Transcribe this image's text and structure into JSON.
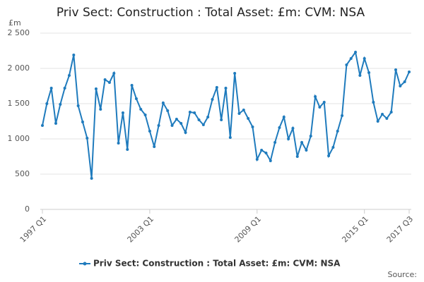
{
  "chart_data": {
    "type": "line",
    "title": "Priv Sect: Construction : Total Asset: £m: CVM: NSA",
    "y_label": "£m",
    "source": "Source:",
    "categories": [
      "1997 Q1",
      null,
      null,
      null,
      null,
      null,
      null,
      null,
      null,
      null,
      null,
      null,
      null,
      null,
      null,
      null,
      null,
      null,
      null,
      null,
      null,
      null,
      null,
      null,
      "2003 Q1",
      null,
      null,
      null,
      null,
      null,
      null,
      null,
      null,
      null,
      null,
      null,
      null,
      null,
      null,
      null,
      null,
      null,
      null,
      null,
      null,
      null,
      null,
      null,
      "2009 Q1",
      null,
      null,
      null,
      null,
      null,
      null,
      null,
      null,
      null,
      null,
      null,
      null,
      null,
      null,
      null,
      null,
      null,
      null,
      null,
      null,
      null,
      null,
      null,
      "2015 Q1",
      null,
      null,
      null,
      null,
      null,
      null,
      null,
      null,
      null,
      "2017 Q3"
    ],
    "series": [
      {
        "name": "Priv Sect: Construction : Total Asset: £m: CVM: NSA",
        "color": "#1f7bbd",
        "values": [
          1190,
          1500,
          1720,
          1220,
          1490,
          1720,
          1900,
          2190,
          1470,
          1240,
          1010,
          440,
          1710,
          1420,
          1840,
          1800,
          1930,
          940,
          1370,
          850,
          1760,
          1570,
          1420,
          1340,
          1110,
          890,
          1190,
          1510,
          1400,
          1190,
          1280,
          1220,
          1090,
          1380,
          1370,
          1270,
          1200,
          1310,
          1560,
          1730,
          1270,
          1720,
          1020,
          1930,
          1360,
          1410,
          1290,
          1170,
          710,
          840,
          800,
          690,
          950,
          1160,
          1310,
          1000,
          1150,
          750,
          950,
          840,
          1040,
          1600,
          1450,
          1520,
          760,
          880,
          1110,
          1330,
          2050,
          2140,
          2230,
          1900,
          2140,
          1940,
          1520,
          1250,
          1350,
          1290,
          1380,
          1980,
          1750,
          1810,
          1950
        ]
      }
    ],
    "ylim": [
      0,
      2500
    ],
    "yticks": [
      0,
      500,
      {
        "value": 1000,
        "label": "1 000"
      },
      {
        "value": 1500,
        "label": "1 500"
      },
      {
        "value": 2000,
        "label": "2 000"
      },
      {
        "value": 2500,
        "label": "2 500"
      }
    ],
    "grid": true
  }
}
